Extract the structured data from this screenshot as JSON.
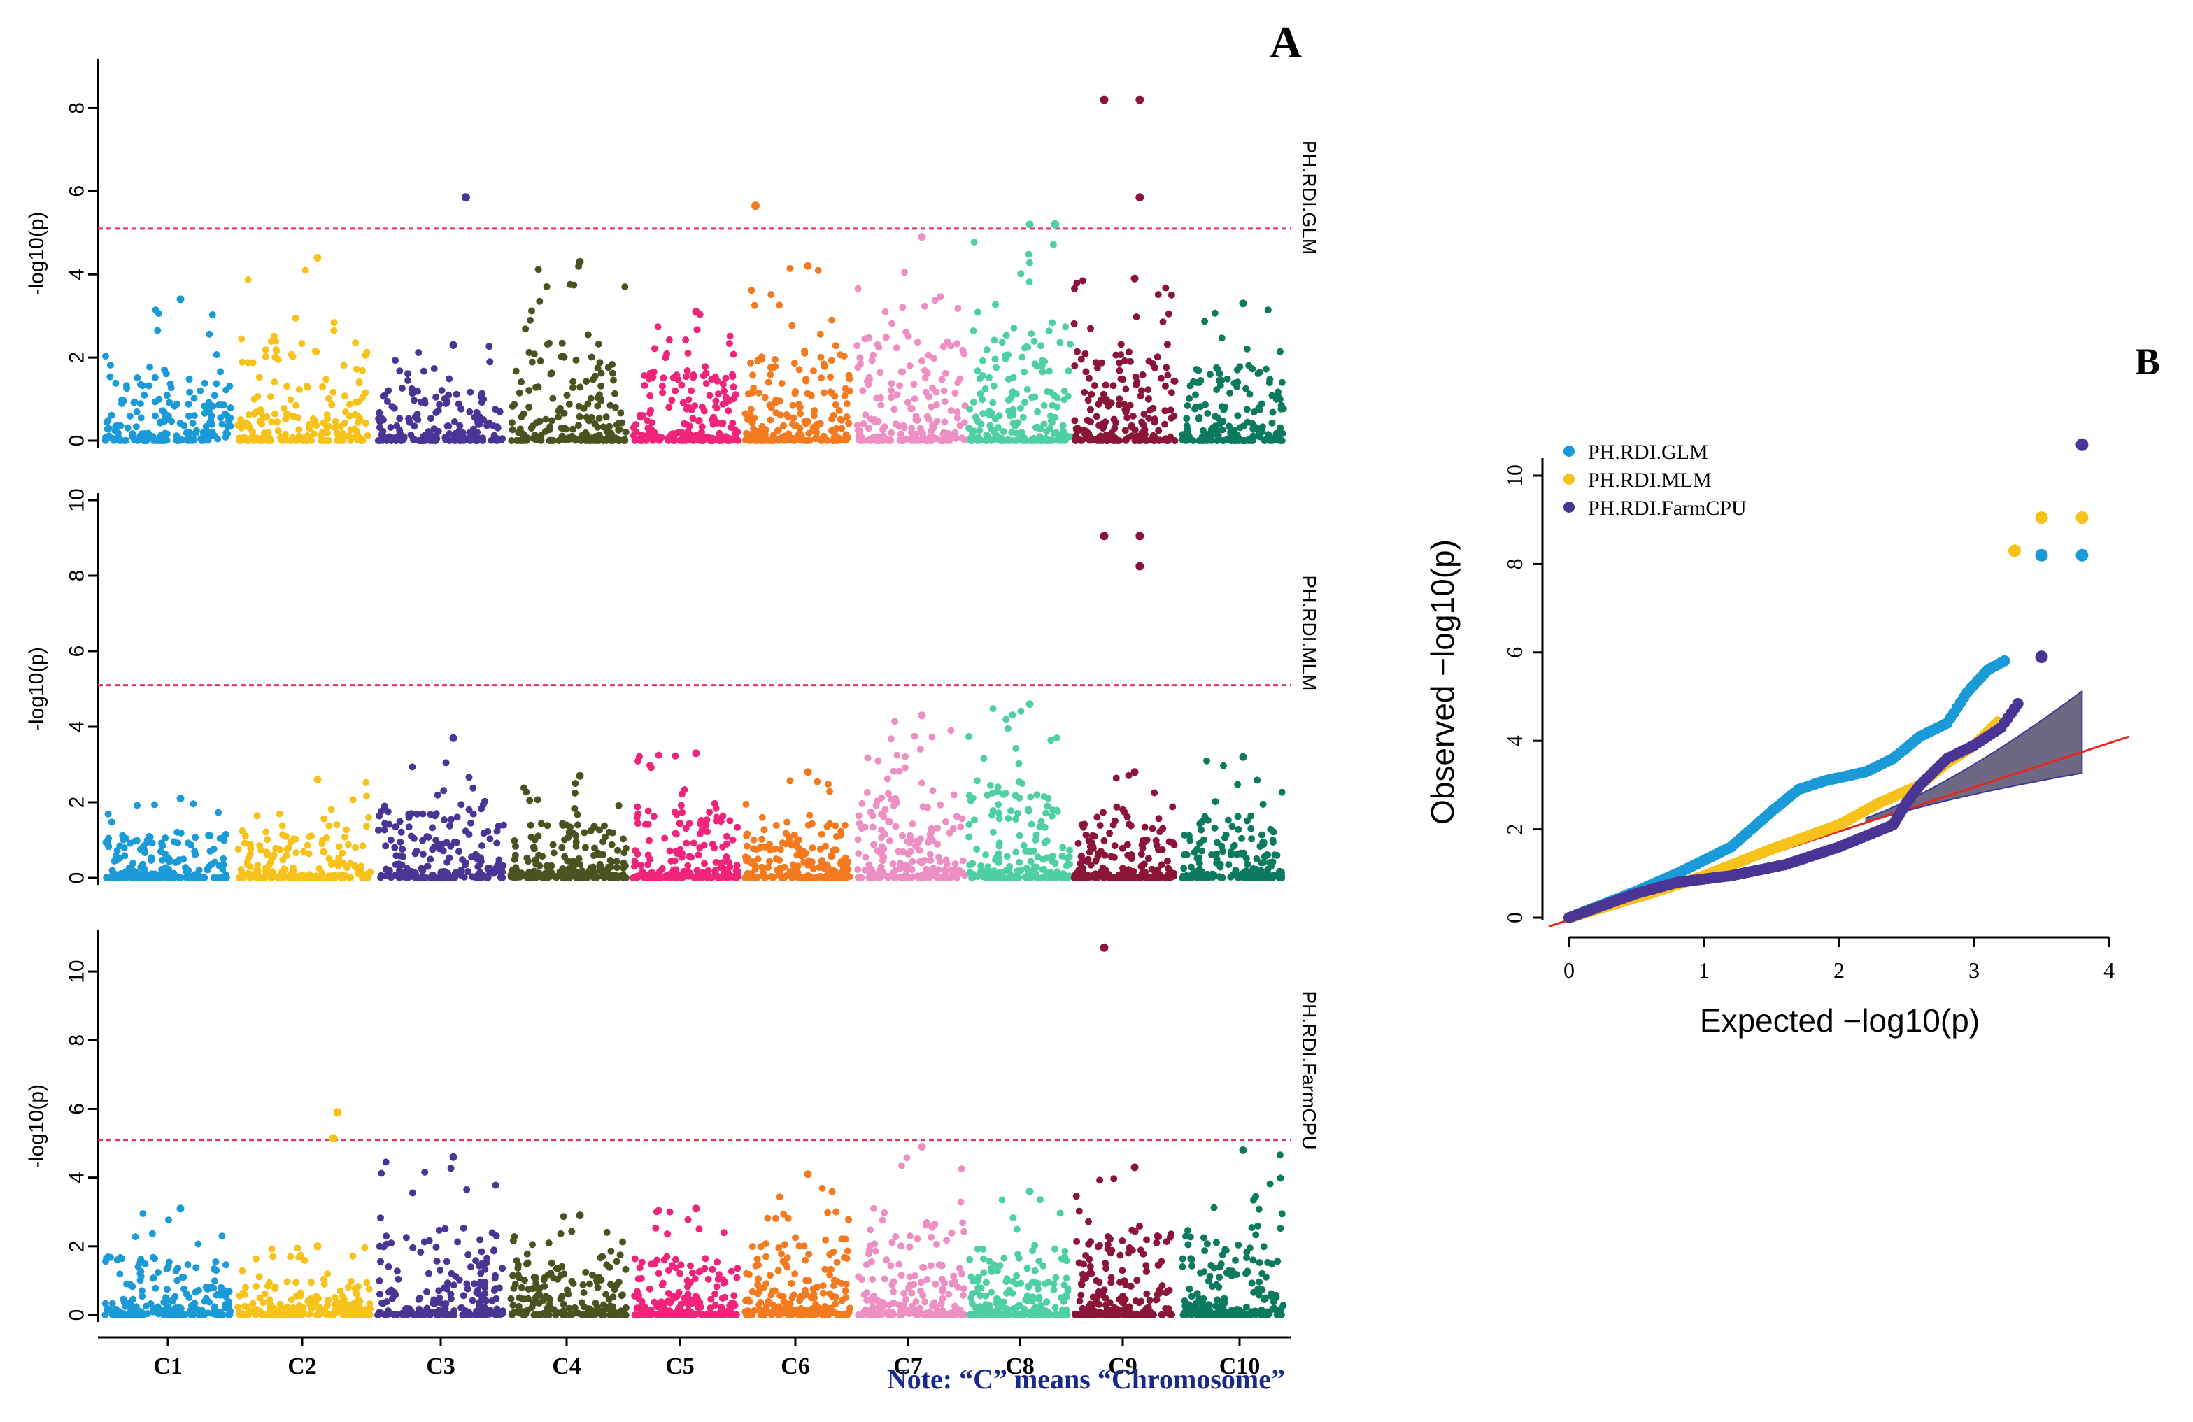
{
  "figure": {
    "panel_a_label": "A",
    "panel_b_label": "B",
    "note": "Note: “C” means “Chromosome”",
    "note_color": "#1a2a8a"
  },
  "chart_data": [
    {
      "type": "scatter",
      "name": "manhattan-glm",
      "title": "PH.RDI.GLM",
      "ylabel": "-log10(p)",
      "ylim": [
        0,
        9
      ],
      "yticks": [
        0,
        2,
        4,
        6,
        8
      ],
      "threshold": 5.1,
      "threshold_color": "#e8335c",
      "chromosomes": [
        "C1",
        "C2",
        "C3",
        "C4",
        "C5",
        "C6",
        "C7",
        "C8",
        "C9",
        "C10"
      ],
      "colors": [
        "#1a9ad6",
        "#f7c21a",
        "#4a3595",
        "#4a5220",
        "#f0247a",
        "#f47a20",
        "#ee8fc4",
        "#4ecfa6",
        "#8b1538",
        "#0b7a5e"
      ],
      "peak_max": [
        3.4,
        4.4,
        2.3,
        4.3,
        3.1,
        4.2,
        4.9,
        5.2,
        3.9,
        3.3
      ],
      "highlights": [
        {
          "chr": 3,
          "pos": 0.7,
          "y": 5.85
        },
        {
          "chr": 6,
          "pos": 0.1,
          "y": 5.65
        },
        {
          "chr": 8,
          "pos": 0.85,
          "y": 5.2
        },
        {
          "chr": 9,
          "pos": 0.3,
          "y": 8.2
        },
        {
          "chr": 9,
          "pos": 0.65,
          "y": 8.2
        },
        {
          "chr": 9,
          "pos": 0.65,
          "y": 5.85
        }
      ]
    },
    {
      "type": "scatter",
      "name": "manhattan-mlm",
      "title": "PH.RDI.MLM",
      "ylabel": "-log10(p)",
      "ylim": [
        0,
        10
      ],
      "yticks": [
        0,
        2,
        4,
        6,
        8,
        10
      ],
      "threshold": 5.1,
      "threshold_color": "#e8335c",
      "chromosomes": [
        "C1",
        "C2",
        "C3",
        "C4",
        "C5",
        "C6",
        "C7",
        "C8",
        "C9",
        "C10"
      ],
      "colors": [
        "#1a9ad6",
        "#f7c21a",
        "#4a3595",
        "#4a5220",
        "#f0247a",
        "#f47a20",
        "#ee8fc4",
        "#4ecfa6",
        "#8b1538",
        "#0b7a5e"
      ],
      "peak_max": [
        2.1,
        2.6,
        3.7,
        2.7,
        3.3,
        2.8,
        4.3,
        4.6,
        2.8,
        3.2
      ],
      "highlights": [
        {
          "chr": 9,
          "pos": 0.3,
          "y": 9.05
        },
        {
          "chr": 9,
          "pos": 0.65,
          "y": 9.05
        },
        {
          "chr": 9,
          "pos": 0.65,
          "y": 8.25
        }
      ]
    },
    {
      "type": "scatter",
      "name": "manhattan-farmcpu",
      "title": "PH.RDI.FarmCPU",
      "ylabel": "-log10(p)",
      "ylim": [
        0,
        11
      ],
      "yticks": [
        0,
        2,
        4,
        6,
        8,
        10
      ],
      "threshold": 5.1,
      "threshold_color": "#e8335c",
      "chromosomes": [
        "C1",
        "C2",
        "C3",
        "C4",
        "C5",
        "C6",
        "C7",
        "C8",
        "C9",
        "C10"
      ],
      "colors": [
        "#1a9ad6",
        "#f7c21a",
        "#4a3595",
        "#4a5220",
        "#f0247a",
        "#f47a20",
        "#ee8fc4",
        "#4ecfa6",
        "#8b1538",
        "#0b7a5e"
      ],
      "peak_max": [
        3.1,
        2.0,
        4.6,
        2.9,
        3.1,
        4.1,
        4.9,
        3.6,
        4.3,
        4.8
      ],
      "highlights": [
        {
          "chr": 2,
          "pos": 0.75,
          "y": 5.9
        },
        {
          "chr": 2,
          "pos": 0.72,
          "y": 5.15
        },
        {
          "chr": 9,
          "pos": 0.3,
          "y": 10.7
        }
      ]
    },
    {
      "type": "scatter",
      "name": "qq-plot",
      "title": "",
      "xlabel": "Expected  −log10(p)",
      "ylabel": "Observed  −log10(p)",
      "xlim": [
        0,
        4
      ],
      "ylim": [
        0,
        10.5
      ],
      "xticks": [
        0,
        1,
        2,
        3,
        4
      ],
      "yticks": [
        0,
        2,
        4,
        6,
        8,
        10
      ],
      "legend_position": "top-left",
      "series": [
        {
          "name": "PH.RDI.GLM",
          "color": "#1a9ad6",
          "curve": [
            [
              0,
              0
            ],
            [
              0.5,
              0.6
            ],
            [
              0.8,
              1.0
            ],
            [
              1.2,
              1.6
            ],
            [
              1.5,
              2.4
            ],
            [
              1.7,
              2.9
            ],
            [
              1.9,
              3.1
            ],
            [
              2.2,
              3.3
            ],
            [
              2.4,
              3.6
            ],
            [
              2.6,
              4.1
            ],
            [
              2.8,
              4.4
            ],
            [
              2.95,
              5.1
            ],
            [
              3.1,
              5.6
            ],
            [
              3.25,
              5.85
            ]
          ],
          "top_points": [
            [
              3.5,
              8.2
            ],
            [
              3.8,
              8.2
            ]
          ]
        },
        {
          "name": "PH.RDI.MLM",
          "color": "#f7c21a",
          "curve": [
            [
              0,
              0
            ],
            [
              0.6,
              0.55
            ],
            [
              1.0,
              0.95
            ],
            [
              1.5,
              1.55
            ],
            [
              2.0,
              2.1
            ],
            [
              2.3,
              2.6
            ],
            [
              2.6,
              3.0
            ],
            [
              2.8,
              3.5
            ],
            [
              3.0,
              3.9
            ],
            [
              3.2,
              4.5
            ]
          ],
          "top_points": [
            [
              3.3,
              8.3
            ],
            [
              3.5,
              9.05
            ],
            [
              3.8,
              9.05
            ]
          ]
        },
        {
          "name": "PH.RDI.FarmCPU",
          "color": "#4a3595",
          "curve": [
            [
              0,
              0
            ],
            [
              0.5,
              0.55
            ],
            [
              0.8,
              0.8
            ],
            [
              1.2,
              0.95
            ],
            [
              1.6,
              1.2
            ],
            [
              2.0,
              1.6
            ],
            [
              2.2,
              1.85
            ],
            [
              2.4,
              2.1
            ],
            [
              2.5,
              2.6
            ],
            [
              2.6,
              3.0
            ],
            [
              2.8,
              3.6
            ],
            [
              3.0,
              3.9
            ],
            [
              3.2,
              4.3
            ],
            [
              3.35,
              4.95
            ]
          ],
          "top_points": [
            [
              3.5,
              5.9
            ],
            [
              3.8,
              10.7
            ]
          ]
        }
      ],
      "reference_line_color": "#e8241c",
      "ci_band_color": "#5e5876"
    }
  ]
}
